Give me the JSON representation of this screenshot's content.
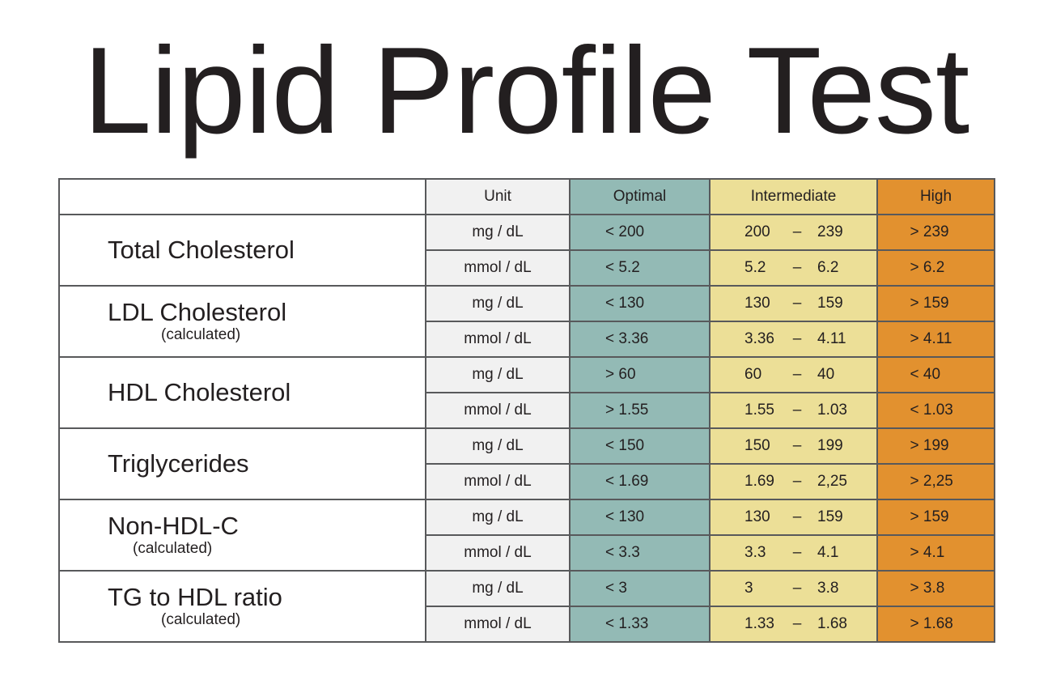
{
  "title": "Lipid Profile Test",
  "colors": {
    "unit": "#f1f1f1",
    "optimal": "#93bab5",
    "intermediate": "#ecdf97",
    "high": "#e2912f",
    "border": "#58595b"
  },
  "header": {
    "label": "",
    "unit": "Unit",
    "optimal": "Optimal",
    "intermediate": "Intermediate",
    "high": "High"
  },
  "rows": [
    {
      "name": "Total Cholesterol",
      "sub": "",
      "values": [
        {
          "unit": "mg / dL",
          "optimal": "< 200",
          "int_low": "200",
          "int_high": "239",
          "high": "> 239"
        },
        {
          "unit": "mmol / dL",
          "optimal": "< 5.2",
          "int_low": "5.2",
          "int_high": "6.2",
          "high": "> 6.2"
        }
      ]
    },
    {
      "name": "LDL Cholesterol",
      "sub": "(calculated)",
      "values": [
        {
          "unit": "mg / dL",
          "optimal": "< 130",
          "int_low": "130",
          "int_high": "159",
          "high": "> 159"
        },
        {
          "unit": "mmol / dL",
          "optimal": "< 3.36",
          "int_low": "3.36",
          "int_high": "4.11",
          "high": "> 4.11"
        }
      ]
    },
    {
      "name": "HDL Cholesterol",
      "sub": "",
      "values": [
        {
          "unit": "mg / dL",
          "optimal": "> 60",
          "int_low": "60",
          "int_high": "40",
          "high": "< 40"
        },
        {
          "unit": "mmol / dL",
          "optimal": "> 1.55",
          "int_low": "1.55",
          "int_high": "1.03",
          "high": "< 1.03"
        }
      ]
    },
    {
      "name": "Triglycerides",
      "sub": "",
      "values": [
        {
          "unit": "mg / dL",
          "optimal": "< 150",
          "int_low": "150",
          "int_high": "199",
          "high": "> 199"
        },
        {
          "unit": "mmol / dL",
          "optimal": "< 1.69",
          "int_low": "1.69",
          "int_high": "2,25",
          "high": "> 2,25"
        }
      ]
    },
    {
      "name": "Non-HDL-C",
      "sub": "(calculated)",
      "values": [
        {
          "unit": "mg / dL",
          "optimal": "< 130",
          "int_low": "130",
          "int_high": "159",
          "high": "> 159"
        },
        {
          "unit": "mmol / dL",
          "optimal": "< 3.3",
          "int_low": "3.3",
          "int_high": "4.1",
          "high": "> 4.1"
        }
      ]
    },
    {
      "name": "TG to HDL ratio",
      "sub": "(calculated)",
      "values": [
        {
          "unit": "mg / dL",
          "optimal": "< 3",
          "int_low": "3",
          "int_high": "3.8",
          "high": "> 3.8"
        },
        {
          "unit": "mmol / dL",
          "optimal": "< 1.33",
          "int_low": "1.33",
          "int_high": "1.68",
          "high": "> 1.68"
        }
      ]
    }
  ],
  "range_separator": "–"
}
